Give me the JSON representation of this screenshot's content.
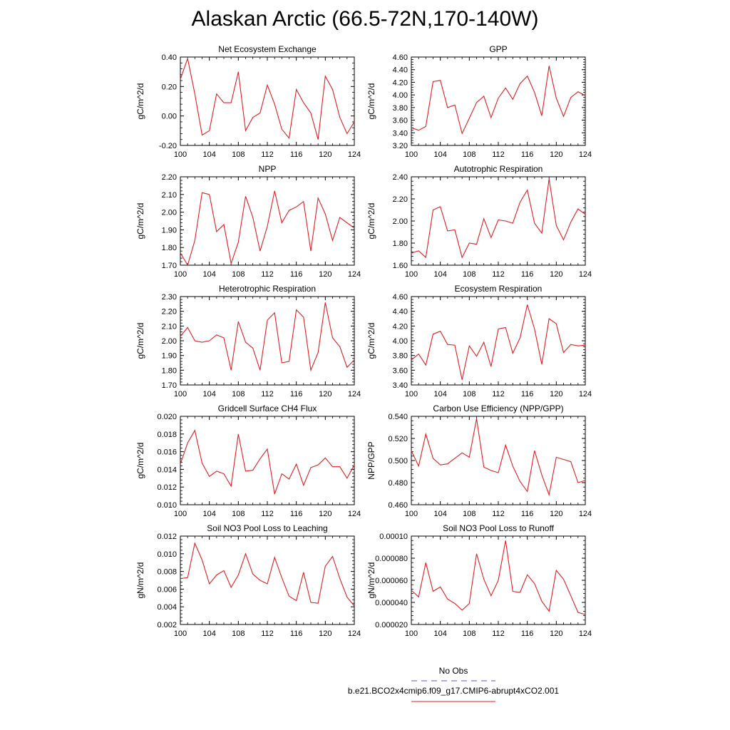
{
  "figure": {
    "title": "Alaskan Arctic (66.5-72N,170-140W)"
  },
  "legend": {
    "obs_label": "No Obs",
    "obs_color": "#5a5ad6",
    "model_label": "b.e21.BCO2x4cmip6.f09_g17.CMIP6-abrupt4xCO2.001",
    "model_color": "#e02020"
  },
  "chart_data": [
    {
      "type": "line",
      "title": "Net Ecosystem Exchange",
      "ylabel": "gC/m^2/d",
      "xlim": [
        100,
        124
      ],
      "ylim": [
        -0.2,
        0.4
      ],
      "yticks": [
        -0.2,
        0.0,
        0.2,
        0.4
      ],
      "ytick_labels": [
        "-0.20",
        "0.00",
        "0.20",
        "0.40"
      ],
      "xticks": [
        100,
        104,
        108,
        112,
        116,
        120,
        124
      ],
      "x": [
        100,
        101,
        102,
        103,
        104,
        105,
        106,
        107,
        108,
        109,
        110,
        111,
        112,
        113,
        114,
        115,
        116,
        117,
        118,
        119,
        120,
        121,
        122,
        123,
        124
      ],
      "series": [
        {
          "values": [
            0.25,
            0.39,
            0.15,
            -0.13,
            -0.1,
            0.15,
            0.09,
            0.09,
            0.3,
            -0.1,
            -0.01,
            0.02,
            0.21,
            0.08,
            -0.09,
            -0.15,
            0.18,
            0.09,
            0.02,
            -0.16,
            0.27,
            0.18,
            -0.01,
            -0.12,
            -0.04
          ]
        }
      ]
    },
    {
      "type": "line",
      "title": "GPP",
      "ylabel": "gC/m^2/d",
      "xlim": [
        100,
        124
      ],
      "ylim": [
        3.2,
        4.6
      ],
      "yticks": [
        3.2,
        3.4,
        3.6,
        3.8,
        4.0,
        4.2,
        4.4,
        4.6
      ],
      "ytick_labels": [
        "3.20",
        "3.40",
        "3.60",
        "3.80",
        "4.00",
        "4.20",
        "4.40",
        "4.60"
      ],
      "xticks": [
        100,
        104,
        108,
        112,
        116,
        120,
        124
      ],
      "x": [
        100,
        101,
        102,
        103,
        104,
        105,
        106,
        107,
        108,
        109,
        110,
        111,
        112,
        113,
        114,
        115,
        116,
        117,
        118,
        119,
        120,
        121,
        122,
        123,
        124
      ],
      "series": [
        {
          "values": [
            3.48,
            3.44,
            3.5,
            4.21,
            4.23,
            3.8,
            3.84,
            3.39,
            3.63,
            3.88,
            3.98,
            3.64,
            3.95,
            4.11,
            3.93,
            4.18,
            4.3,
            4.04,
            3.67,
            4.46,
            3.95,
            3.66,
            3.96,
            4.05,
            3.99
          ]
        }
      ]
    },
    {
      "type": "line",
      "title": "NPP",
      "ylabel": "gC/m^2/d",
      "xlim": [
        100,
        124
      ],
      "ylim": [
        1.7,
        2.2
      ],
      "yticks": [
        1.7,
        1.8,
        1.9,
        2.0,
        2.1,
        2.2
      ],
      "ytick_labels": [
        "1.70",
        "1.80",
        "1.90",
        "2.00",
        "2.10",
        "2.20"
      ],
      "xticks": [
        100,
        104,
        108,
        112,
        116,
        120,
        124
      ],
      "x": [
        100,
        101,
        102,
        103,
        104,
        105,
        106,
        107,
        108,
        109,
        110,
        111,
        112,
        113,
        114,
        115,
        116,
        117,
        118,
        119,
        120,
        121,
        122,
        123,
        124
      ],
      "series": [
        {
          "values": [
            1.77,
            1.7,
            1.84,
            2.11,
            2.1,
            1.89,
            1.93,
            1.71,
            1.83,
            2.09,
            1.97,
            1.78,
            1.92,
            2.12,
            1.94,
            2.01,
            2.03,
            2.06,
            1.78,
            2.08,
            1.99,
            1.84,
            1.97,
            1.94,
            1.91
          ]
        }
      ]
    },
    {
      "type": "line",
      "title": "Autotrophic Respiration",
      "ylabel": "gC/m^2/d",
      "xlim": [
        100,
        124
      ],
      "ylim": [
        1.6,
        2.4
      ],
      "yticks": [
        1.6,
        1.8,
        2.0,
        2.2,
        2.4
      ],
      "ytick_labels": [
        "1.60",
        "1.80",
        "2.00",
        "2.20",
        "2.40"
      ],
      "xticks": [
        100,
        104,
        108,
        112,
        116,
        120,
        124
      ],
      "x": [
        100,
        101,
        102,
        103,
        104,
        105,
        106,
        107,
        108,
        109,
        110,
        111,
        112,
        113,
        114,
        115,
        116,
        117,
        118,
        119,
        120,
        121,
        122,
        123,
        124
      ],
      "series": [
        {
          "values": [
            1.71,
            1.73,
            1.67,
            2.1,
            2.13,
            1.91,
            1.92,
            1.67,
            1.8,
            1.79,
            2.02,
            1.85,
            2.01,
            2.0,
            1.98,
            2.17,
            2.28,
            1.98,
            1.89,
            2.38,
            1.96,
            1.83,
            1.99,
            2.11,
            2.06
          ]
        }
      ]
    },
    {
      "type": "line",
      "title": "Heterotrophic Respiration",
      "ylabel": "gC/m^2/d",
      "xlim": [
        100,
        124
      ],
      "ylim": [
        1.7,
        2.3
      ],
      "yticks": [
        1.7,
        1.8,
        1.9,
        2.0,
        2.1,
        2.2,
        2.3
      ],
      "ytick_labels": [
        "1.70",
        "1.80",
        "1.90",
        "2.00",
        "2.10",
        "2.20",
        "2.30"
      ],
      "xticks": [
        100,
        104,
        108,
        112,
        116,
        120,
        124
      ],
      "x": [
        100,
        101,
        102,
        103,
        104,
        105,
        106,
        107,
        108,
        109,
        110,
        111,
        112,
        113,
        114,
        115,
        116,
        117,
        118,
        119,
        120,
        121,
        122,
        123,
        124
      ],
      "series": [
        {
          "values": [
            2.03,
            2.09,
            2.0,
            1.99,
            2.0,
            2.04,
            2.02,
            1.8,
            2.13,
            1.99,
            1.95,
            1.8,
            2.14,
            2.19,
            1.85,
            1.86,
            2.21,
            2.16,
            1.8,
            1.92,
            2.26,
            2.02,
            1.96,
            1.82,
            1.87
          ]
        }
      ]
    },
    {
      "type": "line",
      "title": "Ecosystem Respiration",
      "ylabel": "gC/m^2/d",
      "xlim": [
        100,
        124
      ],
      "ylim": [
        3.4,
        4.6
      ],
      "yticks": [
        3.4,
        3.6,
        3.8,
        4.0,
        4.2,
        4.4,
        4.6
      ],
      "ytick_labels": [
        "3.40",
        "3.60",
        "3.80",
        "4.00",
        "4.20",
        "4.40",
        "4.60"
      ],
      "xticks": [
        100,
        104,
        108,
        112,
        116,
        120,
        124
      ],
      "x": [
        100,
        101,
        102,
        103,
        104,
        105,
        106,
        107,
        108,
        109,
        110,
        111,
        112,
        113,
        114,
        115,
        116,
        117,
        118,
        119,
        120,
        121,
        122,
        123,
        124
      ],
      "series": [
        {
          "values": [
            3.74,
            3.82,
            3.67,
            4.09,
            4.13,
            3.95,
            3.94,
            3.47,
            3.93,
            3.79,
            3.98,
            3.65,
            4.16,
            4.18,
            3.83,
            4.04,
            4.49,
            4.16,
            3.68,
            4.3,
            4.23,
            3.84,
            3.95,
            3.93,
            3.94
          ]
        }
      ]
    },
    {
      "type": "line",
      "title": "Gridcell Surface CH4 Flux",
      "ylabel": "gC/m^2/d",
      "xlim": [
        100,
        124
      ],
      "ylim": [
        0.01,
        0.02
      ],
      "yticks": [
        0.01,
        0.012,
        0.014,
        0.016,
        0.018,
        0.02
      ],
      "ytick_labels": [
        "0.010",
        "0.012",
        "0.014",
        "0.016",
        "0.018",
        "0.020"
      ],
      "xticks": [
        100,
        104,
        108,
        112,
        116,
        120,
        124
      ],
      "x": [
        100,
        101,
        102,
        103,
        104,
        105,
        106,
        107,
        108,
        109,
        110,
        111,
        112,
        113,
        114,
        115,
        116,
        117,
        118,
        119,
        120,
        121,
        122,
        123,
        124
      ],
      "series": [
        {
          "values": [
            0.0146,
            0.017,
            0.0184,
            0.0147,
            0.0132,
            0.0138,
            0.0135,
            0.0121,
            0.018,
            0.0138,
            0.0139,
            0.0152,
            0.0163,
            0.0112,
            0.0135,
            0.0129,
            0.0146,
            0.0122,
            0.0142,
            0.0145,
            0.0153,
            0.0143,
            0.0143,
            0.013,
            0.0145
          ]
        }
      ]
    },
    {
      "type": "line",
      "title": "Carbon Use Efficiency (NPP/GPP)",
      "ylabel": "NPP/GPP",
      "xlim": [
        100,
        124
      ],
      "ylim": [
        0.46,
        0.54
      ],
      "yticks": [
        0.46,
        0.48,
        0.5,
        0.52,
        0.54
      ],
      "ytick_labels": [
        "0.460",
        "0.480",
        "0.500",
        "0.520",
        "0.540"
      ],
      "xticks": [
        100,
        104,
        108,
        112,
        116,
        120,
        124
      ],
      "x": [
        100,
        101,
        102,
        103,
        104,
        105,
        106,
        107,
        108,
        109,
        110,
        111,
        112,
        113,
        114,
        115,
        116,
        117,
        118,
        119,
        120,
        121,
        122,
        123,
        124
      ],
      "series": [
        {
          "values": [
            0.509,
            0.495,
            0.524,
            0.502,
            0.496,
            0.497,
            0.502,
            0.507,
            0.503,
            0.538,
            0.494,
            0.491,
            0.489,
            0.514,
            0.495,
            0.481,
            0.472,
            0.509,
            0.487,
            0.469,
            0.503,
            0.501,
            0.499,
            0.48,
            0.482
          ]
        }
      ]
    },
    {
      "type": "line",
      "title": "Soil NO3 Pool Loss to Leaching",
      "ylabel": "gN/m^2/d",
      "xlim": [
        100,
        124
      ],
      "ylim": [
        0.002,
        0.012
      ],
      "yticks": [
        0.002,
        0.004,
        0.006,
        0.008,
        0.01,
        0.012
      ],
      "ytick_labels": [
        "0.002",
        "0.004",
        "0.006",
        "0.008",
        "0.010",
        "0.012"
      ],
      "xticks": [
        100,
        104,
        108,
        112,
        116,
        120,
        124
      ],
      "x": [
        100,
        101,
        102,
        103,
        104,
        105,
        106,
        107,
        108,
        109,
        110,
        111,
        112,
        113,
        114,
        115,
        116,
        117,
        118,
        119,
        120,
        121,
        122,
        123,
        124
      ],
      "series": [
        {
          "values": [
            0.0072,
            0.0073,
            0.0112,
            0.0093,
            0.0066,
            0.0076,
            0.0081,
            0.0062,
            0.0076,
            0.01,
            0.0077,
            0.007,
            0.0066,
            0.0096,
            0.0073,
            0.0052,
            0.0047,
            0.0079,
            0.0045,
            0.0044,
            0.0086,
            0.0097,
            0.0072,
            0.0051,
            0.0041
          ]
        }
      ]
    },
    {
      "type": "line",
      "title": "Soil NO3 Pool Loss to Runoff",
      "ylabel": "gN/m^2/d",
      "xlim": [
        100,
        124
      ],
      "ylim": [
        2e-05,
        0.0001
      ],
      "yticks": [
        2e-05,
        4e-05,
        6e-05,
        8e-05,
        0.0001
      ],
      "ytick_labels": [
        "0.000020",
        "0.000040",
        "0.000060",
        "0.000080",
        "0.00010"
      ],
      "xticks": [
        100,
        104,
        108,
        112,
        116,
        120,
        124
      ],
      "x": [
        100,
        101,
        102,
        103,
        104,
        105,
        106,
        107,
        108,
        109,
        110,
        111,
        112,
        113,
        114,
        115,
        116,
        117,
        118,
        119,
        120,
        121,
        122,
        123,
        124
      ],
      "series": [
        {
          "values": [
            5.1e-05,
            4.5e-05,
            7.6e-05,
            5e-05,
            5.4e-05,
            4.3e-05,
            3.9e-05,
            3.3e-05,
            3.9e-05,
            8.4e-05,
            6.1e-05,
            4.6e-05,
            6e-05,
            9.6e-05,
            5e-05,
            4.9e-05,
            6.5e-05,
            5.7e-05,
            4.1e-05,
            3.2e-05,
            6.9e-05,
            6.1e-05,
            4.6e-05,
            3.1e-05,
            2.9e-05
          ]
        }
      ]
    }
  ]
}
